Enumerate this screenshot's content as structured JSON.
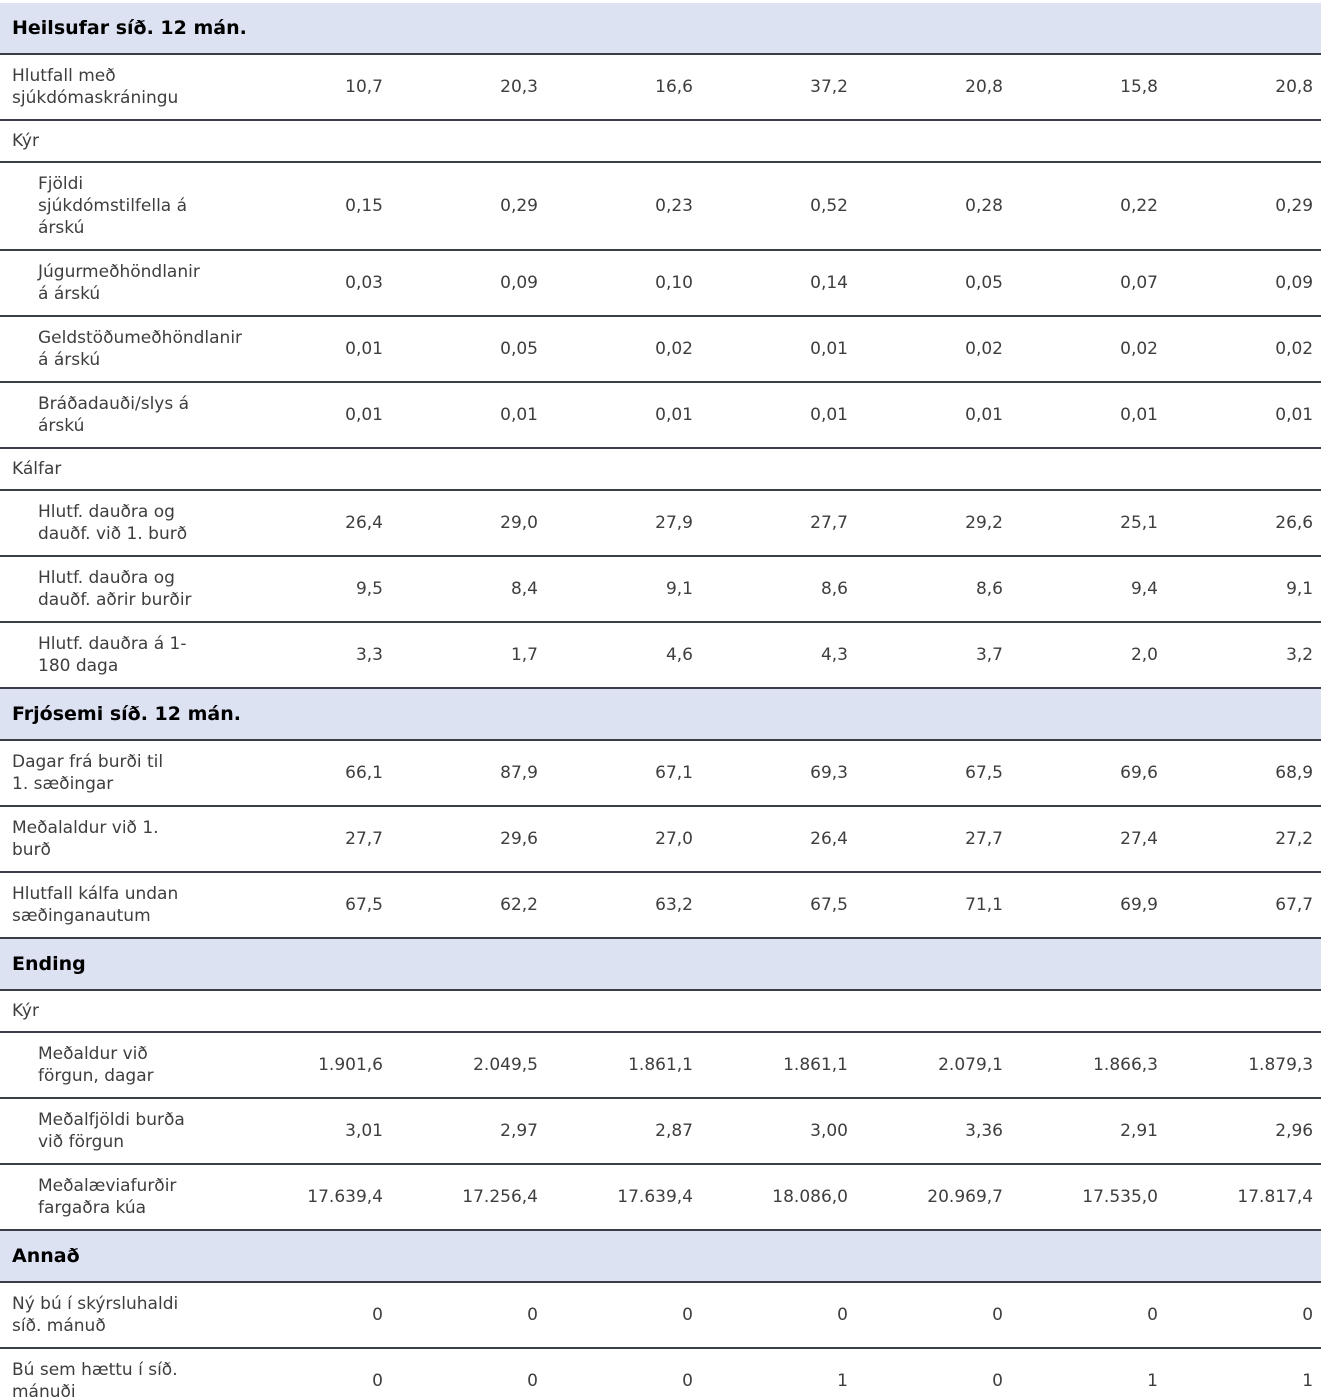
{
  "report": {
    "value_column_count": 7,
    "colors": {
      "section_header_bg": "#dce2f2",
      "row_border": "#3a3e48",
      "body_text": "#3e3e3e",
      "section_title_text": "#000000"
    },
    "sections": [
      {
        "title": "Heilsufar síð. 12 mán.",
        "rows": [
          {
            "type": "data",
            "indent": 0,
            "label": "Hlutfall með\nsjúkdómaskráningu",
            "values": [
              "10,7",
              "20,3",
              "16,6",
              "37,2",
              "20,8",
              "15,8",
              "20,8"
            ]
          },
          {
            "type": "subheader",
            "label": "Kýr"
          },
          {
            "type": "data",
            "indent": 1,
            "label": "Fjöldi\nsjúkdómstilfella á\nárskú",
            "values": [
              "0,15",
              "0,29",
              "0,23",
              "0,52",
              "0,28",
              "0,22",
              "0,29"
            ]
          },
          {
            "type": "data",
            "indent": 1,
            "label": "Júgurmeðhöndlanir\ná árskú",
            "values": [
              "0,03",
              "0,09",
              "0,10",
              "0,14",
              "0,05",
              "0,07",
              "0,09"
            ]
          },
          {
            "type": "data",
            "indent": 1,
            "label": "Geldstöðumeðhöndlanir\ná árskú",
            "values": [
              "0,01",
              "0,05",
              "0,02",
              "0,01",
              "0,02",
              "0,02",
              "0,02"
            ]
          },
          {
            "type": "data",
            "indent": 1,
            "label": "Bráðadauði/slys á\nárskú",
            "values": [
              "0,01",
              "0,01",
              "0,01",
              "0,01",
              "0,01",
              "0,01",
              "0,01"
            ]
          },
          {
            "type": "subheader",
            "label": "Kálfar"
          },
          {
            "type": "data",
            "indent": 1,
            "label": "Hlutf. dauðra og\ndauðf. við 1. burð",
            "values": [
              "26,4",
              "29,0",
              "27,9",
              "27,7",
              "29,2",
              "25,1",
              "26,6"
            ]
          },
          {
            "type": "data",
            "indent": 1,
            "label": "Hlutf. dauðra og\ndauðf. aðrir burðir",
            "values": [
              "9,5",
              "8,4",
              "9,1",
              "8,6",
              "8,6",
              "9,4",
              "9,1"
            ]
          },
          {
            "type": "data",
            "indent": 1,
            "label": "Hlutf. dauðra á 1-\n180 daga",
            "values": [
              "3,3",
              "1,7",
              "4,6",
              "4,3",
              "3,7",
              "2,0",
              "3,2"
            ]
          }
        ]
      },
      {
        "title": "Frjósemi síð. 12 mán.",
        "rows": [
          {
            "type": "data",
            "indent": 0,
            "label": "Dagar frá burði til\n1. sæðingar",
            "values": [
              "66,1",
              "87,9",
              "67,1",
              "69,3",
              "67,5",
              "69,6",
              "68,9"
            ]
          },
          {
            "type": "data",
            "indent": 0,
            "label": "Meðalaldur við 1.\nburð",
            "values": [
              "27,7",
              "29,6",
              "27,0",
              "26,4",
              "27,7",
              "27,4",
              "27,2"
            ]
          },
          {
            "type": "data",
            "indent": 0,
            "label": "Hlutfall kálfa undan\nsæðinganautum",
            "values": [
              "67,5",
              "62,2",
              "63,2",
              "67,5",
              "71,1",
              "69,9",
              "67,7"
            ]
          }
        ]
      },
      {
        "title": "Ending",
        "rows": [
          {
            "type": "subheader",
            "label": "Kýr"
          },
          {
            "type": "data",
            "indent": 1,
            "label": "Meðaldur við\nförgun, dagar",
            "values": [
              "1.901,6",
              "2.049,5",
              "1.861,1",
              "1.861,1",
              "2.079,1",
              "1.866,3",
              "1.879,3"
            ]
          },
          {
            "type": "data",
            "indent": 1,
            "label": "Meðalfjöldi burða\nvið förgun",
            "values": [
              "3,01",
              "2,97",
              "2,87",
              "3,00",
              "3,36",
              "2,91",
              "2,96"
            ]
          },
          {
            "type": "data",
            "indent": 1,
            "label": "Meðalæviafurðir\nfargaðra kúa",
            "values": [
              "17.639,4",
              "17.256,4",
              "17.639,4",
              "18.086,0",
              "20.969,7",
              "17.535,0",
              "17.817,4"
            ]
          }
        ]
      },
      {
        "title": "Annað",
        "rows": [
          {
            "type": "data",
            "indent": 0,
            "label": "Ný bú í skýrsluhaldi\nsíð. mánuð",
            "values": [
              "0",
              "0",
              "0",
              "0",
              "0",
              "0",
              "0"
            ]
          },
          {
            "type": "data",
            "indent": 0,
            "label": "Bú sem hættu í síð.\nmánuði",
            "values": [
              "0",
              "0",
              "0",
              "1",
              "0",
              "1",
              "1"
            ]
          }
        ]
      }
    ]
  }
}
